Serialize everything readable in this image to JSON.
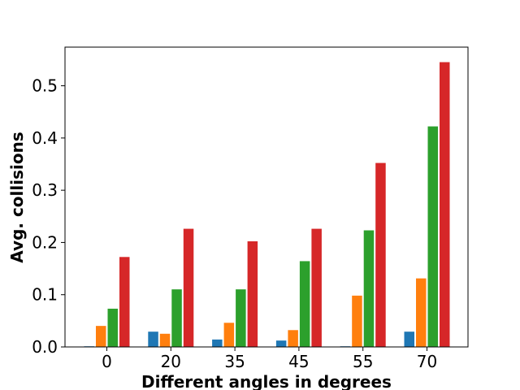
{
  "chart_data": {
    "type": "bar",
    "title": "",
    "xlabel": "Different angles in degrees",
    "ylabel": "Avg. collisions",
    "categories": [
      "0",
      "20",
      "35",
      "45",
      "55",
      "70"
    ],
    "ylim": [
      0,
      0.574
    ],
    "yticks": [
      0.0,
      0.1,
      0.2,
      0.3,
      0.4,
      0.5
    ],
    "ytick_labels": [
      "0.0",
      "0.1",
      "0.2",
      "0.3",
      "0.4",
      "0.5"
    ],
    "grid": false,
    "legend": "none",
    "series": [
      {
        "color": "#1f77b4",
        "values": [
          0.002,
          0.03,
          0.015,
          0.013,
          0.002,
          0.03
        ]
      },
      {
        "color": "#ff7f0e",
        "values": [
          0.041,
          0.026,
          0.047,
          0.033,
          0.099,
          0.132
        ]
      },
      {
        "color": "#2ca02c",
        "values": [
          0.074,
          0.111,
          0.111,
          0.165,
          0.224,
          0.423
        ]
      },
      {
        "color": "#d62728",
        "values": [
          0.173,
          0.227,
          0.203,
          0.227,
          0.353,
          0.546
        ]
      }
    ]
  }
}
